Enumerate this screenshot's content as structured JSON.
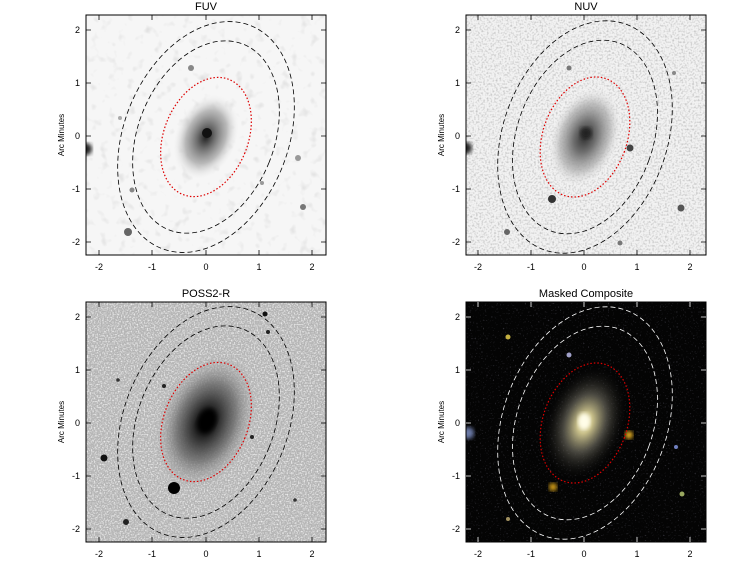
{
  "panels": [
    {
      "title": "FUV",
      "ylabel": "Arc Minutes",
      "theme": "light-sparse",
      "xticks": [
        "-2",
        "-1",
        "0",
        "1",
        "2"
      ],
      "yticks": [
        "-2",
        "-1",
        "0",
        "1",
        "2"
      ],
      "ellipse_color": "#dd0000",
      "annulus_color": "#000000"
    },
    {
      "title": "NUV",
      "ylabel": "Arc Minutes",
      "theme": "light-noisy",
      "xticks": [
        "-2",
        "-1",
        "0",
        "1",
        "2"
      ],
      "yticks": [
        "-2",
        "-1",
        "0",
        "1",
        "2"
      ],
      "ellipse_color": "#dd0000",
      "annulus_color": "#000000"
    },
    {
      "title": "POSS2-R",
      "ylabel": "Arc Minutes",
      "theme": "gray-grainy",
      "xticks": [
        "-2",
        "-1",
        "0",
        "1",
        "2"
      ],
      "yticks": [
        "-2",
        "-1",
        "0",
        "1",
        "2"
      ],
      "ellipse_color": "#dd0000",
      "annulus_color": "#000000"
    },
    {
      "title": "Masked Composite",
      "ylabel": "Arc Minutes",
      "theme": "dark-color",
      "xticks": [
        "-2",
        "-1",
        "0",
        "1",
        "2"
      ],
      "yticks": [
        "-2",
        "-1",
        "0",
        "1",
        "2"
      ],
      "ellipse_color": "#dd0000",
      "annulus_color": "#ffffff"
    }
  ]
}
